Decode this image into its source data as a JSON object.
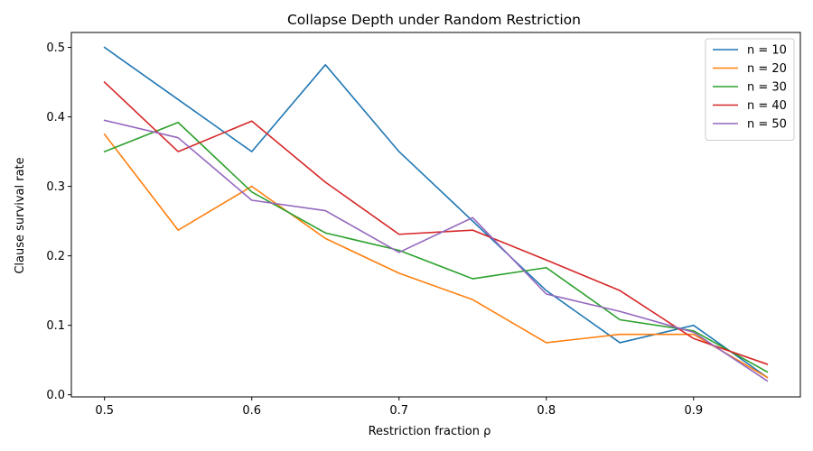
{
  "chart_data": {
    "type": "line",
    "title": "Collapse Depth under Random Restriction",
    "xlabel": "Restriction fraction ρ",
    "ylabel": "Clause survival rate",
    "x": [
      0.5,
      0.55,
      0.6,
      0.65,
      0.7,
      0.75,
      0.8,
      0.85,
      0.9,
      0.95
    ],
    "xlim": [
      0.4775,
      0.9725
    ],
    "ylim": [
      -0.003,
      0.5215
    ],
    "xticks": [
      0.5,
      0.6,
      0.7,
      0.8,
      0.9
    ],
    "xtick_labels": [
      "0.5",
      "0.6",
      "0.7",
      "0.8",
      "0.9"
    ],
    "yticks": [
      0.0,
      0.1,
      0.2,
      0.3,
      0.4,
      0.5
    ],
    "ytick_labels": [
      "0.0",
      "0.1",
      "0.2",
      "0.3",
      "0.4",
      "0.5"
    ],
    "grid": false,
    "legend_position": "top-right",
    "series": [
      {
        "name": "n = 10",
        "color": "#1f77b4",
        "values": [
          0.5,
          0.425,
          0.35,
          0.475,
          0.35,
          0.25,
          0.15,
          0.075,
          0.1,
          0.025
        ]
      },
      {
        "name": "n = 20",
        "color": "#ff7f0e",
        "values": [
          0.375,
          0.237,
          0.3,
          0.225,
          0.175,
          0.137,
          0.075,
          0.087,
          0.087,
          0.025
        ]
      },
      {
        "name": "n = 30",
        "color": "#2ca02c",
        "values": [
          0.35,
          0.392,
          0.292,
          0.233,
          0.208,
          0.167,
          0.183,
          0.108,
          0.092,
          0.033
        ]
      },
      {
        "name": "n = 40",
        "color": "#d62728",
        "values": [
          0.45,
          0.35,
          0.394,
          0.306,
          0.231,
          0.237,
          0.194,
          0.15,
          0.081,
          0.044
        ]
      },
      {
        "name": "n = 50",
        "color": "#9467bd",
        "values": [
          0.395,
          0.37,
          0.28,
          0.265,
          0.205,
          0.255,
          0.145,
          0.12,
          0.09,
          0.02
        ]
      }
    ]
  }
}
